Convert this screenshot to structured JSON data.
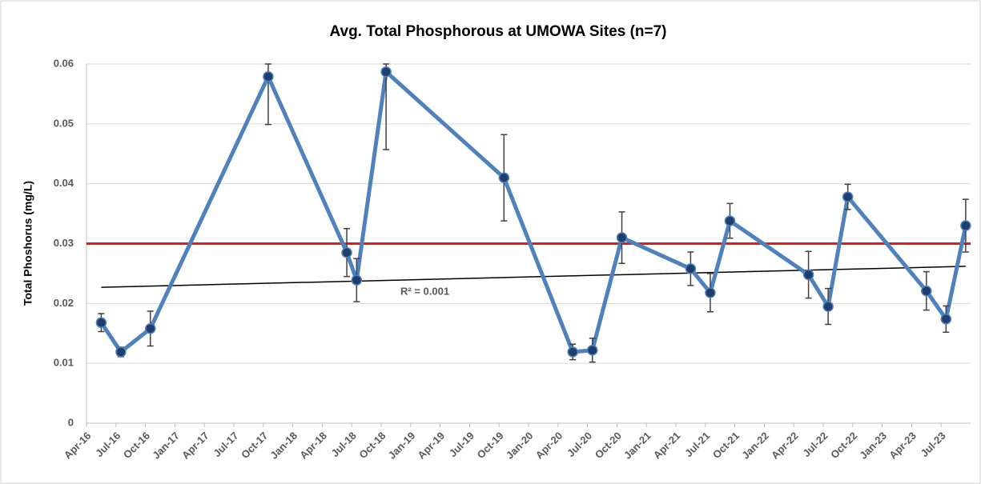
{
  "chart_data": {
    "type": "line",
    "title": "Avg. Total Phosphorous at UMOWA Sites (n=7)",
    "ylabel": "Total Phoshorus (mg/L)",
    "x": [
      "2016-05",
      "2016-07",
      "2016-10",
      "2017-10",
      "2018-06",
      "2018-07",
      "2018-10",
      "2019-10",
      "2020-05",
      "2020-07",
      "2020-10",
      "2021-05",
      "2021-07",
      "2021-09",
      "2022-05",
      "2022-07",
      "2022-09",
      "2023-05",
      "2023-07",
      "2023-09"
    ],
    "series": [
      {
        "color": "#4f81bd",
        "marker_color": "#1f3e6e",
        "values": [
          0.0168,
          0.0119,
          0.0158,
          0.0579,
          0.0285,
          0.0239,
          0.0587,
          0.041,
          0.0119,
          0.0122,
          0.031,
          0.0258,
          0.0218,
          0.0338,
          0.0248,
          0.0195,
          0.0378,
          0.0221,
          0.0174,
          0.033
        ],
        "errors": [
          0.0015,
          0.0008,
          0.0029,
          0.008,
          0.004,
          0.0036,
          0.013,
          0.0072,
          0.0013,
          0.002,
          0.0043,
          0.0028,
          0.0032,
          0.0029,
          0.0039,
          0.003,
          0.0021,
          0.0032,
          0.0022,
          0.0044
        ]
      }
    ],
    "reference_line": {
      "value": 0.03,
      "color": "#e31a1c"
    },
    "trendline": {
      "x": [
        "2016-05",
        "2023-09"
      ],
      "values": [
        0.0227,
        0.0262
      ],
      "color": "#000000",
      "label": "R² = 0.001"
    },
    "xlim": [
      "2016-04",
      "2023-10"
    ],
    "xticks": [
      {
        "value": "2016-04",
        "label": "Apr-16"
      },
      {
        "value": "2016-07",
        "label": "Jul-16"
      },
      {
        "value": "2016-10",
        "label": "Oct-16"
      },
      {
        "value": "2017-01",
        "label": "Jan-17"
      },
      {
        "value": "2017-04",
        "label": "Apr-17"
      },
      {
        "value": "2017-07",
        "label": "Jul-17"
      },
      {
        "value": "2017-10",
        "label": "Oct-17"
      },
      {
        "value": "2018-01",
        "label": "Jan-18"
      },
      {
        "value": "2018-04",
        "label": "Apr-18"
      },
      {
        "value": "2018-07",
        "label": "Jul-18"
      },
      {
        "value": "2018-10",
        "label": "Oct-18"
      },
      {
        "value": "2019-01",
        "label": "Jan-19"
      },
      {
        "value": "2019-04",
        "label": "Apr-19"
      },
      {
        "value": "2019-07",
        "label": "Jul-19"
      },
      {
        "value": "2019-10",
        "label": "Oct-19"
      },
      {
        "value": "2020-01",
        "label": "Jan-20"
      },
      {
        "value": "2020-04",
        "label": "Apr-20"
      },
      {
        "value": "2020-07",
        "label": "Jul-20"
      },
      {
        "value": "2020-10",
        "label": "Oct-20"
      },
      {
        "value": "2021-01",
        "label": "Jan-21"
      },
      {
        "value": "2021-04",
        "label": "Apr-21"
      },
      {
        "value": "2021-07",
        "label": "Jul-21"
      },
      {
        "value": "2021-10",
        "label": "Oct-21"
      },
      {
        "value": "2022-01",
        "label": "Jan-22"
      },
      {
        "value": "2022-04",
        "label": "Apr-22"
      },
      {
        "value": "2022-07",
        "label": "Jul-22"
      },
      {
        "value": "2022-10",
        "label": "Oct-22"
      },
      {
        "value": "2023-01",
        "label": "Jan-23"
      },
      {
        "value": "2023-04",
        "label": "Apr-23"
      },
      {
        "value": "2023-07",
        "label": "Jul-23"
      }
    ],
    "ylim": [
      0,
      0.06
    ],
    "yticks": [
      0,
      0.01,
      0.02,
      0.03,
      0.04,
      0.05,
      0.06
    ],
    "grid": true
  }
}
